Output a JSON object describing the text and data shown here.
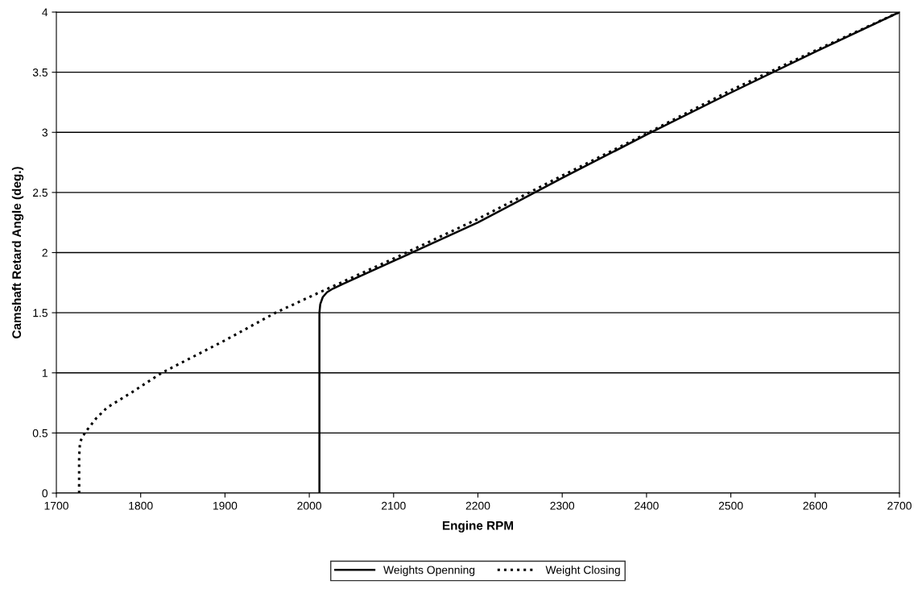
{
  "chart_data": {
    "type": "line",
    "xlabel": "Engine RPM",
    "ylabel": "Camshaft Retard Angle (deg.)",
    "xlim": [
      1700,
      2700
    ],
    "xticks": [
      1700,
      1800,
      1900,
      2000,
      2100,
      2200,
      2300,
      2400,
      2500,
      2600,
      2700
    ],
    "ylim": [
      0,
      4
    ],
    "yticks": [
      0,
      0.5,
      1,
      1.5,
      2,
      2.5,
      3,
      3.5,
      4
    ],
    "grid": "y",
    "legend": "bottom",
    "marker": "none",
    "series": [
      {
        "name": "Weights Openning",
        "color": "#000000",
        "line_style": "solid",
        "x": [
          2012,
          2012,
          2012,
          2013,
          2016,
          2021,
          2028,
          2040,
          2100,
          2200,
          2300,
          2400,
          2500,
          2600,
          2700
        ],
        "values": [
          0,
          1,
          1.5,
          1.57,
          1.63,
          1.67,
          1.7,
          1.74,
          1.93,
          2.25,
          2.62,
          2.98,
          3.33,
          3.67,
          4
        ]
      },
      {
        "name": "Weight Closing",
        "color": "#000000",
        "line_style": "dotted",
        "x": [
          1727,
          1727,
          1728,
          1731,
          1737,
          1747,
          1760,
          1790,
          1825,
          1900,
          1960,
          2000,
          2100,
          2200,
          2300,
          2400,
          2500,
          2600,
          2700
        ],
        "values": [
          0,
          0.3,
          0.42,
          0.47,
          0.53,
          0.62,
          0.71,
          0.84,
          1.0,
          1.27,
          1.5,
          1.63,
          1.95,
          2.28,
          2.64,
          2.99,
          3.35,
          3.68,
          4
        ]
      }
    ]
  }
}
